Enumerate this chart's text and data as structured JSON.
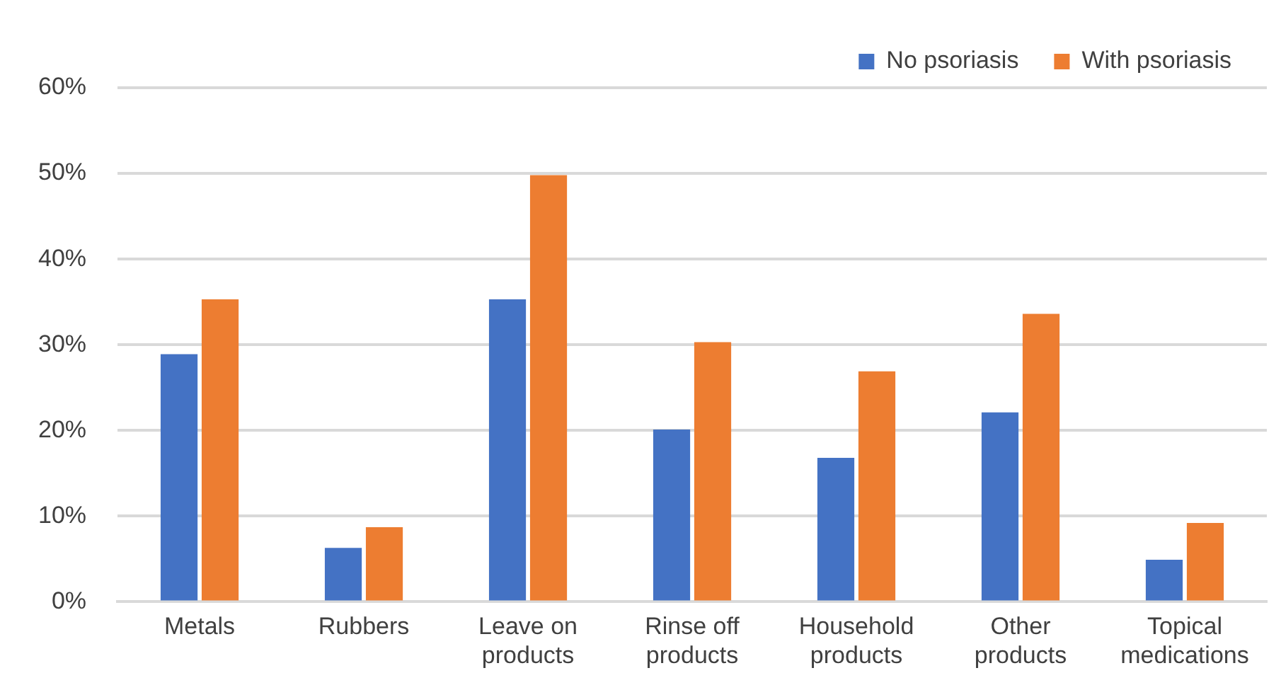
{
  "chart_data": {
    "type": "bar",
    "categories": [
      "Metals",
      "Rubbers",
      "Leave on products",
      "Rinse off products",
      "Household products",
      "Other products",
      "Topical medications"
    ],
    "series": [
      {
        "name": "No psoriasis",
        "color": "#4472c4",
        "values": [
          28.9,
          6.3,
          35.3,
          20.1,
          16.8,
          22.1,
          4.9
        ]
      },
      {
        "name": "With psoriasis",
        "color": "#ed7d31",
        "values": [
          35.3,
          8.7,
          49.8,
          30.3,
          26.9,
          33.6,
          9.2
        ]
      }
    ],
    "ylim": [
      0,
      60
    ],
    "yticks": [
      {
        "value": 0,
        "label": "0%"
      },
      {
        "value": 10,
        "label": "10%"
      },
      {
        "value": 20,
        "label": "20%"
      },
      {
        "value": 30,
        "label": "30%"
      },
      {
        "value": 40,
        "label": "40%"
      },
      {
        "value": 50,
        "label": "50%"
      },
      {
        "value": 60,
        "label": "60%"
      }
    ],
    "grid": "y",
    "legend": "top right"
  }
}
